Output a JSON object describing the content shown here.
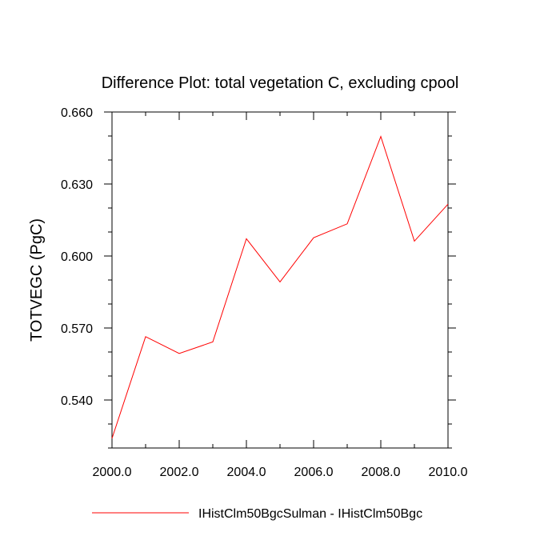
{
  "chart_data": {
    "type": "line",
    "title": "Difference Plot: total vegetation C, excluding cpool",
    "ylabel": "TOTVEGC  (PgC)",
    "xlabel": "",
    "xlim": [
      2000,
      2010
    ],
    "ylim": [
      0.52,
      0.66
    ],
    "x_ticks": [
      2000,
      2002,
      2004,
      2006,
      2008,
      2010
    ],
    "x_tick_labels": [
      "2000.0",
      "2002.0",
      "2004.0",
      "2006.0",
      "2008.0",
      "2010.0"
    ],
    "y_ticks": [
      0.54,
      0.57,
      0.6,
      0.63,
      0.66
    ],
    "y_tick_labels": [
      "0.540",
      "0.570",
      "0.600",
      "0.630",
      "0.660"
    ],
    "x_minor_step": 1,
    "y_minor_step": 0.01,
    "grid": false,
    "legend_position": "bottom",
    "series": [
      {
        "name": "IHistClm50BgcSulman - IHistClm50Bgc",
        "color": "#ff0000",
        "x": [
          2000,
          2001,
          2002,
          2003,
          2004,
          2005,
          2006,
          2007,
          2008,
          2009,
          2010
        ],
        "values": [
          0.524,
          0.5664,
          0.5594,
          0.5642,
          0.6072,
          0.5892,
          0.6076,
          0.6134,
          0.6498,
          0.6062,
          0.6216
        ]
      }
    ]
  }
}
